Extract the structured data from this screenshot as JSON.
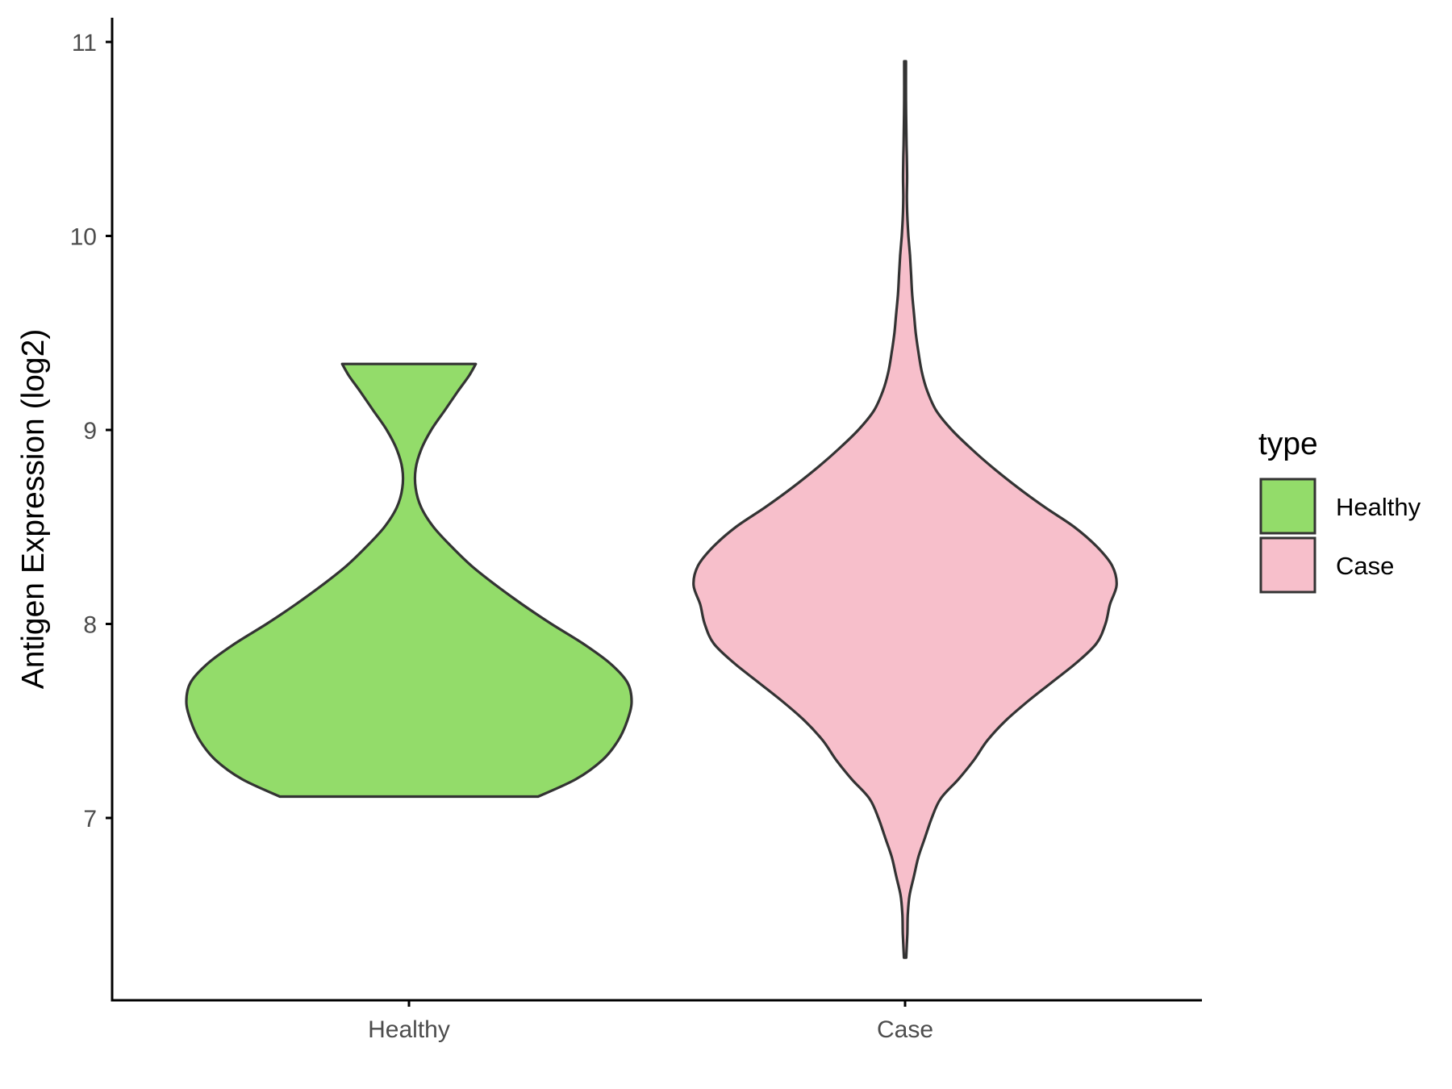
{
  "chart_data": {
    "type": "violin",
    "title": "",
    "xlabel": "",
    "ylabel": "Antigen Expression (log2)",
    "categories": [
      "Healthy",
      "Case"
    ],
    "ylim": [
      6.1,
      11.15
    ],
    "yticks": [
      7,
      8,
      9,
      10,
      11
    ],
    "grid": false,
    "legend": {
      "title": "type",
      "position": "right",
      "entries": [
        {
          "label": "Healthy",
          "color": "#93dc6a"
        },
        {
          "label": "Case",
          "color": "#f7bfcb"
        }
      ]
    },
    "series": [
      {
        "name": "Healthy",
        "color": "#93dc6a",
        "min": 7.11,
        "max": 9.34,
        "profile": [
          [
            7.11,
            0.58
          ],
          [
            7.2,
            0.75
          ],
          [
            7.3,
            0.87
          ],
          [
            7.4,
            0.94
          ],
          [
            7.5,
            0.98
          ],
          [
            7.6,
            1.0
          ],
          [
            7.7,
            0.98
          ],
          [
            7.8,
            0.9
          ],
          [
            7.9,
            0.78
          ],
          [
            8.0,
            0.64
          ],
          [
            8.1,
            0.51
          ],
          [
            8.2,
            0.39
          ],
          [
            8.3,
            0.28
          ],
          [
            8.4,
            0.19
          ],
          [
            8.5,
            0.11
          ],
          [
            8.6,
            0.055
          ],
          [
            8.7,
            0.03
          ],
          [
            8.8,
            0.03
          ],
          [
            8.9,
            0.055
          ],
          [
            9.0,
            0.1
          ],
          [
            9.1,
            0.16
          ],
          [
            9.2,
            0.22
          ],
          [
            9.28,
            0.27
          ],
          [
            9.34,
            0.3
          ]
        ]
      },
      {
        "name": "Case",
        "color": "#f7bfcb",
        "min": 6.28,
        "max": 10.9,
        "profile": [
          [
            6.28,
            0.005
          ],
          [
            6.4,
            0.01
          ],
          [
            6.5,
            0.012
          ],
          [
            6.6,
            0.02
          ],
          [
            6.7,
            0.04
          ],
          [
            6.8,
            0.06
          ],
          [
            6.9,
            0.09
          ],
          [
            7.0,
            0.12
          ],
          [
            7.1,
            0.16
          ],
          [
            7.2,
            0.24
          ],
          [
            7.3,
            0.31
          ],
          [
            7.4,
            0.37
          ],
          [
            7.5,
            0.45
          ],
          [
            7.6,
            0.55
          ],
          [
            7.7,
            0.66
          ],
          [
            7.8,
            0.77
          ],
          [
            7.9,
            0.86
          ],
          [
            8.0,
            0.9
          ],
          [
            8.1,
            0.92
          ],
          [
            8.2,
            0.95
          ],
          [
            8.3,
            0.93
          ],
          [
            8.4,
            0.86
          ],
          [
            8.5,
            0.76
          ],
          [
            8.6,
            0.63
          ],
          [
            8.7,
            0.51
          ],
          [
            8.8,
            0.4
          ],
          [
            8.9,
            0.3
          ],
          [
            9.0,
            0.21
          ],
          [
            9.1,
            0.14
          ],
          [
            9.2,
            0.1
          ],
          [
            9.3,
            0.075
          ],
          [
            9.4,
            0.06
          ],
          [
            9.5,
            0.048
          ],
          [
            9.6,
            0.04
          ],
          [
            9.7,
            0.032
          ],
          [
            9.8,
            0.027
          ],
          [
            9.9,
            0.022
          ],
          [
            10.0,
            0.015
          ],
          [
            10.1,
            0.01
          ],
          [
            10.2,
            0.008
          ],
          [
            10.3,
            0.009
          ],
          [
            10.4,
            0.008
          ],
          [
            10.5,
            0.006
          ],
          [
            10.7,
            0.004
          ],
          [
            10.9,
            0.004
          ]
        ]
      }
    ]
  }
}
